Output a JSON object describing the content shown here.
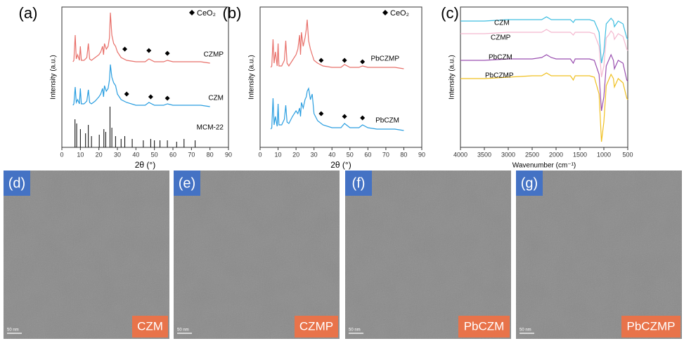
{
  "chart_data": [
    {
      "type": "line",
      "label": "(a)",
      "x_label": "2θ (°)",
      "y_label": "Intensity (a.u.)",
      "xlim": [
        0,
        90
      ],
      "xticks": [
        0,
        10,
        20,
        30,
        40,
        50,
        60,
        70,
        80,
        90
      ],
      "ylim": [
        0,
        100
      ],
      "marker_legend": "CeO₂",
      "series": [
        {
          "name": "CZMP",
          "color": "#e8706a",
          "x": [
            6,
            6.5,
            7.2,
            7.8,
            8.5,
            9.5,
            10,
            10.5,
            12,
            13.5,
            14.3,
            15,
            16,
            18,
            20,
            21,
            22,
            22.5,
            23,
            24,
            25,
            25.7,
            26.2,
            27,
            28,
            29,
            30,
            32,
            35,
            40,
            45,
            47,
            50,
            55,
            57,
            60,
            65,
            70,
            75,
            80
          ],
          "values": [
            61,
            62,
            80,
            63,
            66,
            62,
            72,
            62,
            62,
            64,
            74,
            63,
            62,
            64,
            66,
            68,
            72,
            66,
            74,
            70,
            72,
            78,
            96,
            80,
            74,
            72,
            68,
            64,
            62,
            61,
            61,
            63,
            61,
            61,
            62,
            61,
            61,
            61,
            61,
            60
          ],
          "ceo2_x": [
            34,
            47,
            57
          ],
          "ceo2_y": [
            70,
            69,
            67
          ]
        },
        {
          "name": "CZM",
          "color": "#2a9ee0",
          "x": [
            6,
            6.5,
            7.2,
            7.8,
            8.5,
            9.5,
            10,
            10.5,
            12,
            13.5,
            14.3,
            15,
            16,
            18,
            20,
            21,
            22,
            22.5,
            23,
            24,
            25,
            25.7,
            26.2,
            27,
            28,
            29,
            30,
            32,
            35,
            40,
            45,
            47,
            50,
            55,
            57,
            60,
            65,
            70,
            75,
            80
          ],
          "values": [
            30,
            31,
            43,
            32,
            34,
            31,
            42,
            31,
            31,
            33,
            41,
            32,
            31,
            33,
            36,
            38,
            42,
            36,
            44,
            40,
            42,
            48,
            59,
            50,
            46,
            44,
            38,
            34,
            32,
            30,
            30,
            32,
            30,
            30,
            31,
            30,
            30,
            30,
            30,
            29
          ],
          "ceo2_x": [
            35,
            48,
            57
          ],
          "ceo2_y": [
            38,
            36,
            35
          ]
        },
        {
          "name": "MCM-22",
          "color": "#000000",
          "style": "stem",
          "x": [
            7.1,
            8,
            10,
            12.8,
            14.3,
            16,
            20.2,
            22.7,
            23.7,
            26,
            27,
            29,
            32,
            34,
            38,
            44,
            48,
            50,
            53,
            57,
            62,
            66,
            72
          ],
          "values": [
            20,
            17,
            13,
            10,
            16,
            8,
            9,
            13,
            11,
            29,
            14,
            8,
            6,
            8,
            6,
            5,
            6,
            5,
            5,
            5,
            4,
            6,
            5
          ]
        }
      ]
    },
    {
      "type": "line",
      "label": "(b)",
      "x_label": "2θ (°)",
      "y_label": "Intensity (a.u.)",
      "xlim": [
        0,
        90
      ],
      "xticks": [
        0,
        10,
        20,
        30,
        40,
        50,
        60,
        70,
        80,
        90
      ],
      "ylim": [
        0,
        100
      ],
      "marker_legend": "CeO₂",
      "series": [
        {
          "name": "PbCZMP",
          "color": "#e8706a",
          "x": [
            6,
            6.5,
            7.2,
            7.8,
            8.5,
            9.5,
            10,
            10.5,
            12,
            13.5,
            14.3,
            15,
            16,
            18,
            20,
            21,
            22,
            22.5,
            23,
            24,
            25,
            25.7,
            26.2,
            27,
            28,
            29,
            30,
            32,
            35,
            40,
            45,
            47,
            50,
            55,
            57,
            60,
            65,
            70,
            75,
            80
          ],
          "values": [
            57,
            58,
            77,
            60,
            68,
            58,
            74,
            58,
            58,
            62,
            76,
            60,
            58,
            62,
            66,
            70,
            80,
            66,
            82,
            72,
            78,
            84,
            91,
            76,
            70,
            66,
            62,
            60,
            58,
            57,
            57,
            59,
            57,
            57,
            58,
            57,
            57,
            57,
            57,
            56
          ],
          "ceo2_x": [
            34,
            47,
            57
          ],
          "ceo2_y": [
            62,
            62,
            61
          ]
        },
        {
          "name": "PbCZM",
          "color": "#2a9ee0",
          "x": [
            6,
            6.5,
            7.2,
            7.8,
            8.5,
            9.5,
            10,
            10.5,
            12,
            13.5,
            14.3,
            15,
            16,
            18,
            20,
            21,
            22,
            22.5,
            23,
            24,
            25,
            25.7,
            26.2,
            27,
            28,
            29,
            30,
            32,
            35,
            40,
            45,
            47,
            50,
            55,
            57,
            60,
            65,
            70,
            75,
            80
          ],
          "values": [
            13,
            14,
            35,
            16,
            22,
            15,
            31,
            16,
            16,
            20,
            30,
            18,
            17,
            22,
            26,
            24,
            28,
            22,
            32,
            28,
            34,
            36,
            40,
            42,
            34,
            38,
            24,
            19,
            16,
            14,
            14,
            17,
            14,
            14,
            16,
            14,
            13,
            13,
            13,
            12
          ],
          "ceo2_x": [
            34,
            47,
            57
          ],
          "ceo2_y": [
            24,
            22,
            21
          ]
        }
      ]
    },
    {
      "type": "line",
      "label": "(c)",
      "x_label": "Wavenumber (cm⁻¹)",
      "y_label": "Intensity (a.u.)",
      "xlim": [
        4000,
        500
      ],
      "xticks": [
        4000,
        3500,
        3000,
        2500,
        2000,
        1500,
        1000,
        500
      ],
      "ylim": [
        0,
        100
      ],
      "series": [
        {
          "name": "CZM",
          "color": "#3dbde0",
          "x": [
            4000,
            3500,
            3000,
            2500,
            2300,
            2200,
            2100,
            2000,
            1700,
            1640,
            1600,
            1300,
            1200,
            1100,
            1050,
            1000,
            950,
            900,
            850,
            800,
            780,
            700,
            600,
            520,
            500
          ],
          "values": [
            90,
            90,
            91,
            91,
            91,
            93,
            91,
            91,
            91,
            89,
            91,
            91,
            90,
            82,
            60,
            68,
            88,
            90,
            92,
            90,
            86,
            90,
            88,
            78,
            77
          ]
        },
        {
          "name": "CZMP",
          "color": "#f4b8cf",
          "x": [
            4000,
            3500,
            3000,
            2500,
            2300,
            2200,
            2100,
            2000,
            1700,
            1640,
            1600,
            1300,
            1200,
            1100,
            1050,
            1000,
            950,
            900,
            850,
            800,
            780,
            700,
            600,
            520,
            500
          ],
          "values": [
            81,
            81,
            82,
            82,
            82,
            84,
            82,
            82,
            82,
            80,
            82,
            82,
            81,
            72,
            50,
            58,
            78,
            80,
            83,
            81,
            77,
            81,
            79,
            70,
            69
          ]
        },
        {
          "name": "PbCZM",
          "color": "#9a4fb0",
          "x": [
            4000,
            3500,
            3000,
            2500,
            2300,
            2200,
            2100,
            2000,
            1700,
            1640,
            1600,
            1300,
            1200,
            1100,
            1050,
            1000,
            950,
            900,
            850,
            800,
            780,
            700,
            600,
            520,
            500
          ],
          "values": [
            62,
            62,
            63,
            63,
            64,
            66,
            64,
            63,
            63,
            60,
            63,
            63,
            62,
            52,
            26,
            36,
            58,
            62,
            66,
            62,
            56,
            62,
            60,
            48,
            47
          ]
        },
        {
          "name": "PbCZMP",
          "color": "#f0c020",
          "x": [
            4000,
            3500,
            3000,
            2500,
            2300,
            2200,
            2100,
            2000,
            1700,
            1640,
            1600,
            1300,
            1200,
            1100,
            1050,
            1000,
            950,
            900,
            850,
            800,
            780,
            700,
            600,
            520,
            500
          ],
          "values": [
            49,
            49,
            50,
            51,
            51,
            53,
            51,
            51,
            51,
            48,
            51,
            51,
            50,
            38,
            4,
            18,
            44,
            48,
            52,
            49,
            43,
            49,
            46,
            35,
            34
          ]
        }
      ]
    }
  ],
  "images": [
    {
      "label": "(d)",
      "caption": "CZM",
      "scale_bar": "50 nm"
    },
    {
      "label": "(e)",
      "caption": "CZMP",
      "scale_bar": "50 nm"
    },
    {
      "label": "(f)",
      "caption": "PbCZM",
      "scale_bar": "50 nm"
    },
    {
      "label": "(g)",
      "caption": "PbCZMP",
      "scale_bar": "50 nm"
    }
  ]
}
